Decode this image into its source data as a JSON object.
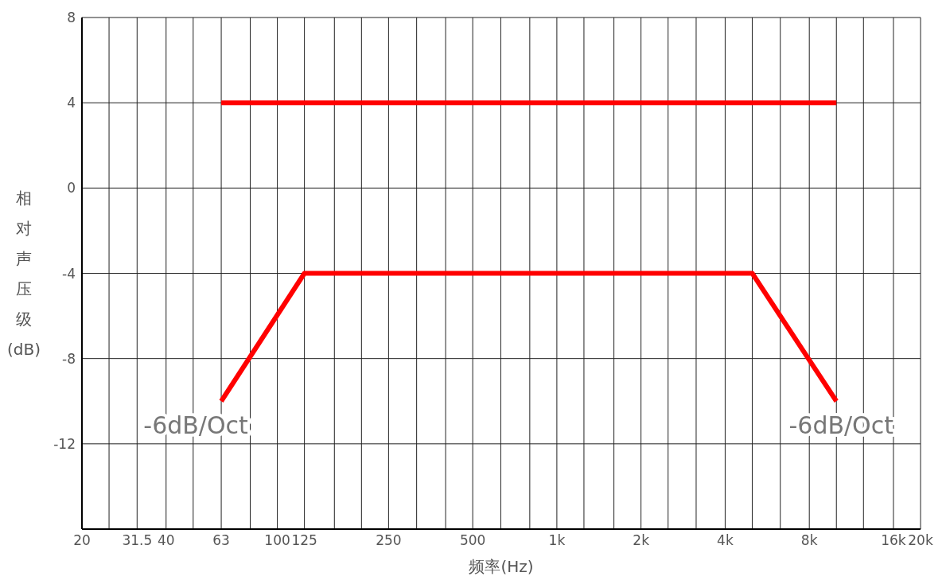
{
  "chart_data": {
    "type": "line",
    "xlabel": "频率(Hz)",
    "ylabel": "相对声压级(dB)",
    "log": "x",
    "xlim": [
      20,
      20000
    ],
    "xticks": [
      20,
      {
        "value": 25,
        "label": null
      },
      31.5,
      40,
      {
        "value": 50,
        "label": null
      },
      63,
      {
        "value": 80,
        "label": null
      },
      100,
      125,
      {
        "value": 160,
        "label": null
      },
      {
        "value": 200,
        "label": null
      },
      250,
      {
        "value": 315,
        "label": null
      },
      {
        "value": 400,
        "label": null
      },
      500,
      {
        "value": 630,
        "label": null
      },
      {
        "value": 800,
        "label": null
      },
      {
        "value": 1000,
        "label": "1k"
      },
      {
        "value": 1250,
        "label": null
      },
      {
        "value": 1600,
        "label": null
      },
      {
        "value": 2000,
        "label": "2k"
      },
      {
        "value": 2500,
        "label": null
      },
      {
        "value": 3150,
        "label": null
      },
      {
        "value": 4000,
        "label": "4k"
      },
      {
        "value": 5000,
        "label": null
      },
      {
        "value": 6300,
        "label": null
      },
      {
        "value": 8000,
        "label": "8k"
      },
      {
        "value": 10000,
        "label": null
      },
      {
        "value": 12500,
        "label": null
      },
      {
        "value": 16000,
        "label": "16k"
      },
      {
        "value": 20000,
        "label": "20k"
      }
    ],
    "ylim": [
      -16,
      8
    ],
    "yticks": [
      {
        "value": -16,
        "label": null
      },
      -12,
      -8,
      -4,
      0,
      4,
      8
    ],
    "grid": true,
    "legend": false,
    "marker": "none",
    "line_style": "solid",
    "series": [
      {
        "color": "#ff0000",
        "x": [
          63,
          10000
        ],
        "values": [
          4,
          4
        ]
      },
      {
        "color": "#ff0000",
        "x": [
          63,
          125,
          5000,
          10000
        ],
        "values": [
          -10,
          -4,
          -4,
          -10
        ]
      }
    ],
    "annotations": [
      {
        "text": "-6dB/Oct",
        "x": 63,
        "y": -10
      },
      {
        "text": "-6dB/Oct",
        "x": 10000,
        "y": -10
      }
    ]
  }
}
